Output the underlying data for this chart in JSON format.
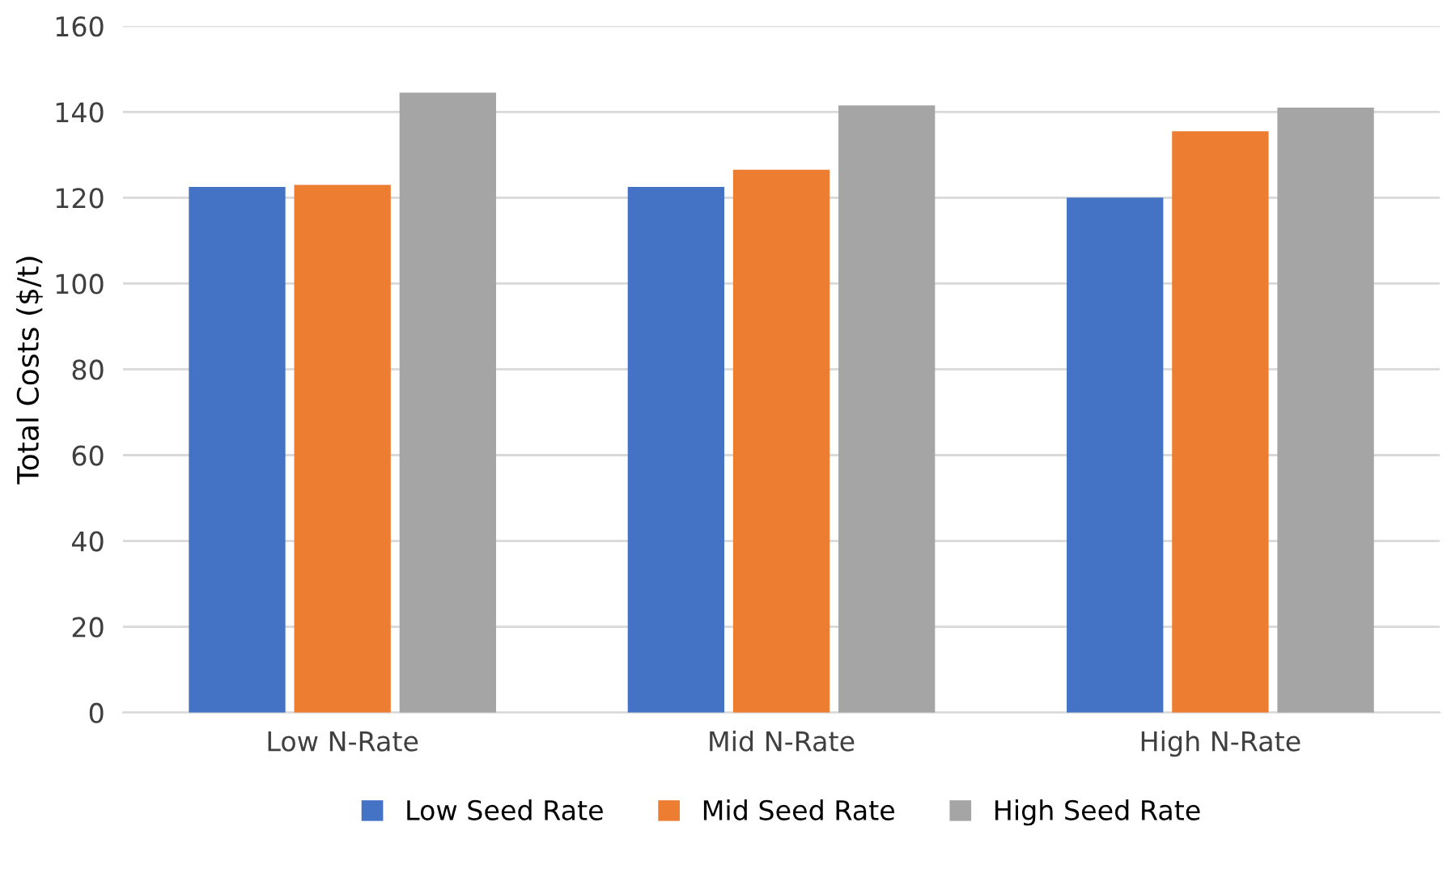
{
  "chart_data": {
    "type": "bar",
    "ylabel": "Total Costs ($/t)",
    "categories": [
      "Low N-Rate",
      "Mid N-Rate",
      "High N-Rate"
    ],
    "series": [
      {
        "name": "Low Seed Rate",
        "color": "#4472c4",
        "values": [
          122.5,
          122.5,
          120
        ]
      },
      {
        "name": "Mid Seed Rate",
        "color": "#ed7d31",
        "values": [
          123,
          126.5,
          135.5
        ]
      },
      {
        "name": "High Seed Rate",
        "color": "#a5a5a5",
        "values": [
          144.5,
          141.5,
          141
        ]
      }
    ],
    "ylim": [
      0,
      160
    ],
    "yticks": [
      0,
      20,
      40,
      60,
      80,
      100,
      120,
      140,
      160
    ],
    "grid": "y",
    "legend": "bottom"
  }
}
